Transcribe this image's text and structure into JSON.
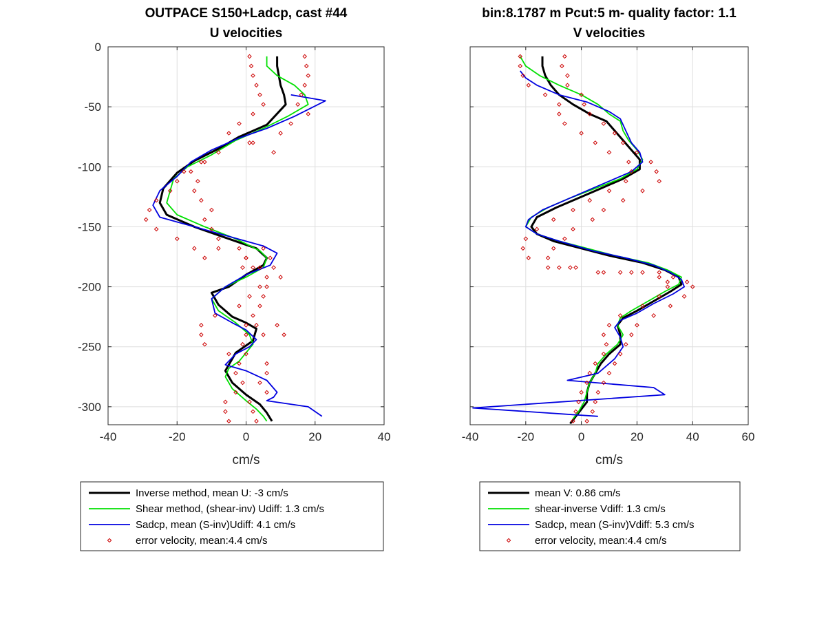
{
  "chart_data": [
    {
      "type": "line",
      "title": "OUTPACE S150+Ladcp, cast #44",
      "subtitle": "U velocities",
      "xlabel": "cm/s",
      "ylabel": "",
      "xlim": [
        -40,
        40
      ],
      "ylim": [
        -315,
        0
      ],
      "xticks": [
        -40,
        -20,
        0,
        20,
        40
      ],
      "yticks": [
        0,
        -50,
        -100,
        -150,
        -200,
        -250,
        -300
      ],
      "grid": true,
      "legend_position": "bottom",
      "series": [
        {
          "name": "Inverse method, mean U:  -3 cm/s",
          "color": "#000000",
          "style": "line-thick",
          "x": [
            9,
            9,
            9.5,
            10,
            11,
            11.5,
            6,
            -2,
            -8,
            -15,
            -20,
            -24,
            -25,
            -23,
            -15,
            -5,
            3,
            6,
            5,
            0,
            -5,
            -10,
            -8,
            -4,
            0,
            3,
            2,
            -3,
            -5,
            -6,
            -4,
            0,
            4,
            6,
            7.5
          ],
          "y": [
            -8,
            -16,
            -24,
            -32,
            -40,
            -48,
            -65,
            -75,
            -85,
            -95,
            -105,
            -118,
            -130,
            -140,
            -150,
            -160,
            -168,
            -176,
            -182,
            -190,
            -200,
            -205,
            -215,
            -225,
            -230,
            -235,
            -245,
            -255,
            -265,
            -270,
            -280,
            -290,
            -298,
            -305,
            -312
          ]
        },
        {
          "name": "Shear method, (shear-inv)  Udiff:  1.3 cm/s",
          "color": "#00e000",
          "style": "line",
          "x": [
            6,
            6,
            9,
            14,
            17,
            18,
            12,
            5,
            -3,
            -10,
            -17,
            -21,
            -22,
            -23,
            -20,
            -12,
            -3,
            4,
            6,
            5,
            0,
            -6,
            -10,
            -8,
            -3,
            1,
            2,
            0,
            -2,
            -5,
            -6,
            -4,
            0,
            3,
            5,
            6
          ],
          "y": [
            -8,
            -16,
            -24,
            -32,
            -40,
            -48,
            -58,
            -68,
            -78,
            -90,
            -100,
            -110,
            -120,
            -130,
            -140,
            -150,
            -160,
            -170,
            -176,
            -184,
            -192,
            -200,
            -210,
            -220,
            -230,
            -240,
            -248,
            -255,
            -262,
            -268,
            -275,
            -285,
            -295,
            -302,
            -308,
            -312
          ]
        },
        {
          "name": "Sadcp, mean (S-inv)Udiff: 4.1 cm/s",
          "color": "#0000e0",
          "style": "line",
          "x": [
            13,
            23,
            14,
            6,
            -2,
            -10,
            -16,
            -20,
            -25,
            -27,
            -25,
            -15,
            -5,
            5,
            9,
            7,
            0,
            -6,
            -10,
            -9,
            -4,
            0,
            3,
            1,
            -3,
            -5,
            -6,
            0,
            6,
            9,
            8,
            6,
            18,
            22
          ],
          "y": [
            -40,
            -45,
            -58,
            -68,
            -76,
            -86,
            -96,
            -108,
            -120,
            -132,
            -142,
            -150,
            -158,
            -166,
            -172,
            -182,
            -190,
            -200,
            -210,
            -222,
            -230,
            -236,
            -244,
            -250,
            -256,
            -262,
            -265,
            -270,
            -278,
            -288,
            -292,
            -295,
            -300,
            -308
          ]
        },
        {
          "name": "error velocity, mean:4.4 cm/s",
          "color": "#cc0000",
          "style": "markers",
          "x": [
            1,
            17,
            1.5,
            17.5,
            2,
            18,
            3,
            17,
            4,
            16,
            5,
            15,
            2,
            18,
            -2,
            13,
            -5,
            10,
            2,
            1,
            -8,
            8,
            -13,
            -12,
            -18,
            -16,
            -20,
            -14,
            -22,
            -15,
            -26,
            -13,
            -28,
            -10,
            -29,
            -12,
            -26,
            -10,
            -20,
            -8,
            -15,
            -8,
            -12,
            0,
            -1,
            4,
            6,
            10,
            4,
            6,
            1,
            5,
            -2,
            4,
            -9,
            2,
            -13,
            0,
            -13,
            0,
            -12,
            -1,
            -5,
            0,
            -2,
            6,
            -3,
            6,
            -1,
            4,
            -3,
            6,
            -6,
            1,
            -6,
            2,
            -5,
            3,
            -2,
            5,
            0,
            7,
            2,
            8,
            3,
            9,
            5,
            11
          ],
          "y": [
            -8,
            -8,
            -16,
            -16,
            -24,
            -24,
            -32,
            -32,
            -40,
            -40,
            -48,
            -48,
            -56,
            -56,
            -64,
            -64,
            -72,
            -72,
            -80,
            -80,
            -88,
            -88,
            -96,
            -96,
            -104,
            -104,
            -112,
            -112,
            -120,
            -120,
            -128,
            -128,
            -136,
            -136,
            -144,
            -144,
            -152,
            -152,
            -160,
            -160,
            -168,
            -168,
            -176,
            -176,
            -184,
            -184,
            -192,
            -192,
            -200,
            -200,
            -208,
            -208,
            -216,
            -216,
            -224,
            -224,
            -232,
            -232,
            -240,
            -240,
            -248,
            -248,
            -256,
            -256,
            -264,
            -264,
            -272,
            -272,
            -280,
            -280,
            -288,
            -288,
            -296,
            -296,
            -304,
            -304,
            -312,
            -312,
            -168,
            -168,
            -176,
            -176,
            -184,
            -184,
            -232,
            -232,
            -240,
            -240
          ]
        }
      ]
    },
    {
      "type": "line",
      "title": "bin:8.1787 m  Pcut:5 m- quality factor:  1.1",
      "subtitle": "V velocities",
      "xlabel": "cm/s",
      "ylabel": "",
      "xlim": [
        -40,
        60
      ],
      "ylim": [
        -315,
        0
      ],
      "xticks": [
        -40,
        -20,
        0,
        20,
        40,
        60
      ],
      "yticks": [
        0,
        -50,
        -100,
        -150,
        -200,
        -250,
        -300
      ],
      "grid": true,
      "legend_position": "bottom",
      "series": [
        {
          "name": "mean V:  0.86 cm/s",
          "color": "#000000",
          "style": "line-thick",
          "x": [
            -14,
            -14,
            -13,
            -11,
            -8,
            -3,
            3,
            9,
            12,
            15,
            18,
            21,
            21,
            15,
            7,
            -1,
            -9,
            -16,
            -18,
            -16,
            -10,
            0,
            10,
            22,
            30,
            35,
            36,
            32,
            26,
            20,
            15,
            13,
            14,
            14,
            10,
            7,
            5,
            3,
            2,
            2,
            0,
            -2,
            -4
          ],
          "y": [
            -8,
            -16,
            -24,
            -32,
            -40,
            -48,
            -56,
            -62,
            -70,
            -78,
            -86,
            -94,
            -102,
            -110,
            -118,
            -126,
            -134,
            -142,
            -150,
            -156,
            -162,
            -168,
            -174,
            -180,
            -186,
            -192,
            -198,
            -204,
            -212,
            -220,
            -226,
            -232,
            -240,
            -248,
            -256,
            -264,
            -272,
            -280,
            -288,
            -296,
            -302,
            -308,
            -314
          ]
        },
        {
          "name": "shear-inverse Vdiff:  1.3 cm/s",
          "color": "#00e000",
          "style": "line",
          "x": [
            -22,
            -20,
            -15,
            -8,
            0,
            6,
            10,
            14,
            15,
            17,
            20,
            22,
            20,
            14,
            5,
            -4,
            -12,
            -18,
            -20,
            -16,
            -8,
            2,
            12,
            24,
            31,
            36,
            35,
            30,
            24,
            18,
            14,
            13,
            15,
            13,
            9,
            6,
            5,
            3,
            2,
            1,
            -1,
            -3
          ],
          "y": [
            -8,
            -16,
            -24,
            -32,
            -40,
            -48,
            -56,
            -62,
            -70,
            -78,
            -86,
            -94,
            -102,
            -110,
            -118,
            -126,
            -134,
            -142,
            -150,
            -156,
            -162,
            -168,
            -174,
            -180,
            -186,
            -192,
            -198,
            -204,
            -212,
            -220,
            -226,
            -232,
            -240,
            -248,
            -256,
            -264,
            -272,
            -280,
            -288,
            -296,
            -304,
            -310
          ]
        },
        {
          "name": "Sadcp, mean (S-inv)Vdiff: 5.3 cm/s",
          "color": "#0000e0",
          "style": "line",
          "x": [
            -22,
            -20,
            -16,
            -8,
            2,
            10,
            14,
            16,
            18,
            21,
            22,
            18,
            10,
            2,
            -6,
            -14,
            -19,
            -20,
            -16,
            -8,
            4,
            16,
            26,
            32,
            36,
            37,
            33,
            26,
            20,
            14,
            12,
            14,
            15,
            12,
            9,
            6,
            -5,
            26,
            30,
            -39,
            6
          ],
          "y": [
            -20,
            -26,
            -32,
            -40,
            -46,
            -54,
            -60,
            -70,
            -80,
            -88,
            -96,
            -104,
            -112,
            -120,
            -128,
            -136,
            -144,
            -150,
            -156,
            -162,
            -170,
            -176,
            -182,
            -188,
            -194,
            -200,
            -206,
            -214,
            -222,
            -228,
            -234,
            -242,
            -250,
            -260,
            -266,
            -272,
            -278,
            -284,
            -290,
            -301,
            -308
          ]
        },
        {
          "name": "error velocity, mean:4.4 cm/s",
          "color": "#cc0000",
          "style": "markers",
          "x": [
            -22,
            -6,
            -22,
            -7,
            -21,
            -5,
            -19,
            -5,
            -13,
            0,
            -8,
            1,
            -8,
            3,
            -6,
            8,
            0,
            12,
            5,
            15,
            10,
            20,
            17,
            25,
            18,
            27,
            16,
            28,
            10,
            22,
            3,
            15,
            -3,
            8,
            -10,
            4,
            -16,
            -3,
            -20,
            -6,
            -21,
            -10,
            -19,
            -12,
            -12,
            -8,
            -4,
            -2,
            6,
            8,
            14,
            18,
            22,
            28,
            28,
            33,
            31,
            38,
            31,
            40,
            28,
            37,
            22,
            32,
            14,
            26,
            10,
            20,
            8,
            18,
            9,
            16,
            8,
            14,
            5,
            12,
            3,
            10,
            2,
            8,
            0,
            6,
            -1,
            5,
            -2,
            4,
            -3,
            2
          ],
          "y": [
            -8,
            -8,
            -16,
            -16,
            -24,
            -24,
            -32,
            -32,
            -40,
            -40,
            -48,
            -48,
            -56,
            -56,
            -64,
            -64,
            -72,
            -72,
            -80,
            -80,
            -88,
            -88,
            -96,
            -96,
            -104,
            -104,
            -112,
            -112,
            -120,
            -120,
            -128,
            -128,
            -136,
            -136,
            -144,
            -144,
            -152,
            -152,
            -160,
            -160,
            -168,
            -168,
            -176,
            -176,
            -184,
            -184,
            -184,
            -184,
            -188,
            -188,
            -188,
            -188,
            -188,
            -188,
            -192,
            -192,
            -196,
            -196,
            -200,
            -200,
            -208,
            -208,
            -216,
            -216,
            -224,
            -224,
            -232,
            -232,
            -240,
            -240,
            -248,
            -248,
            -256,
            -256,
            -264,
            -264,
            -272,
            -272,
            -280,
            -280,
            -288,
            -288,
            -296,
            -296,
            -304,
            -304,
            -312,
            -312
          ]
        }
      ]
    }
  ]
}
